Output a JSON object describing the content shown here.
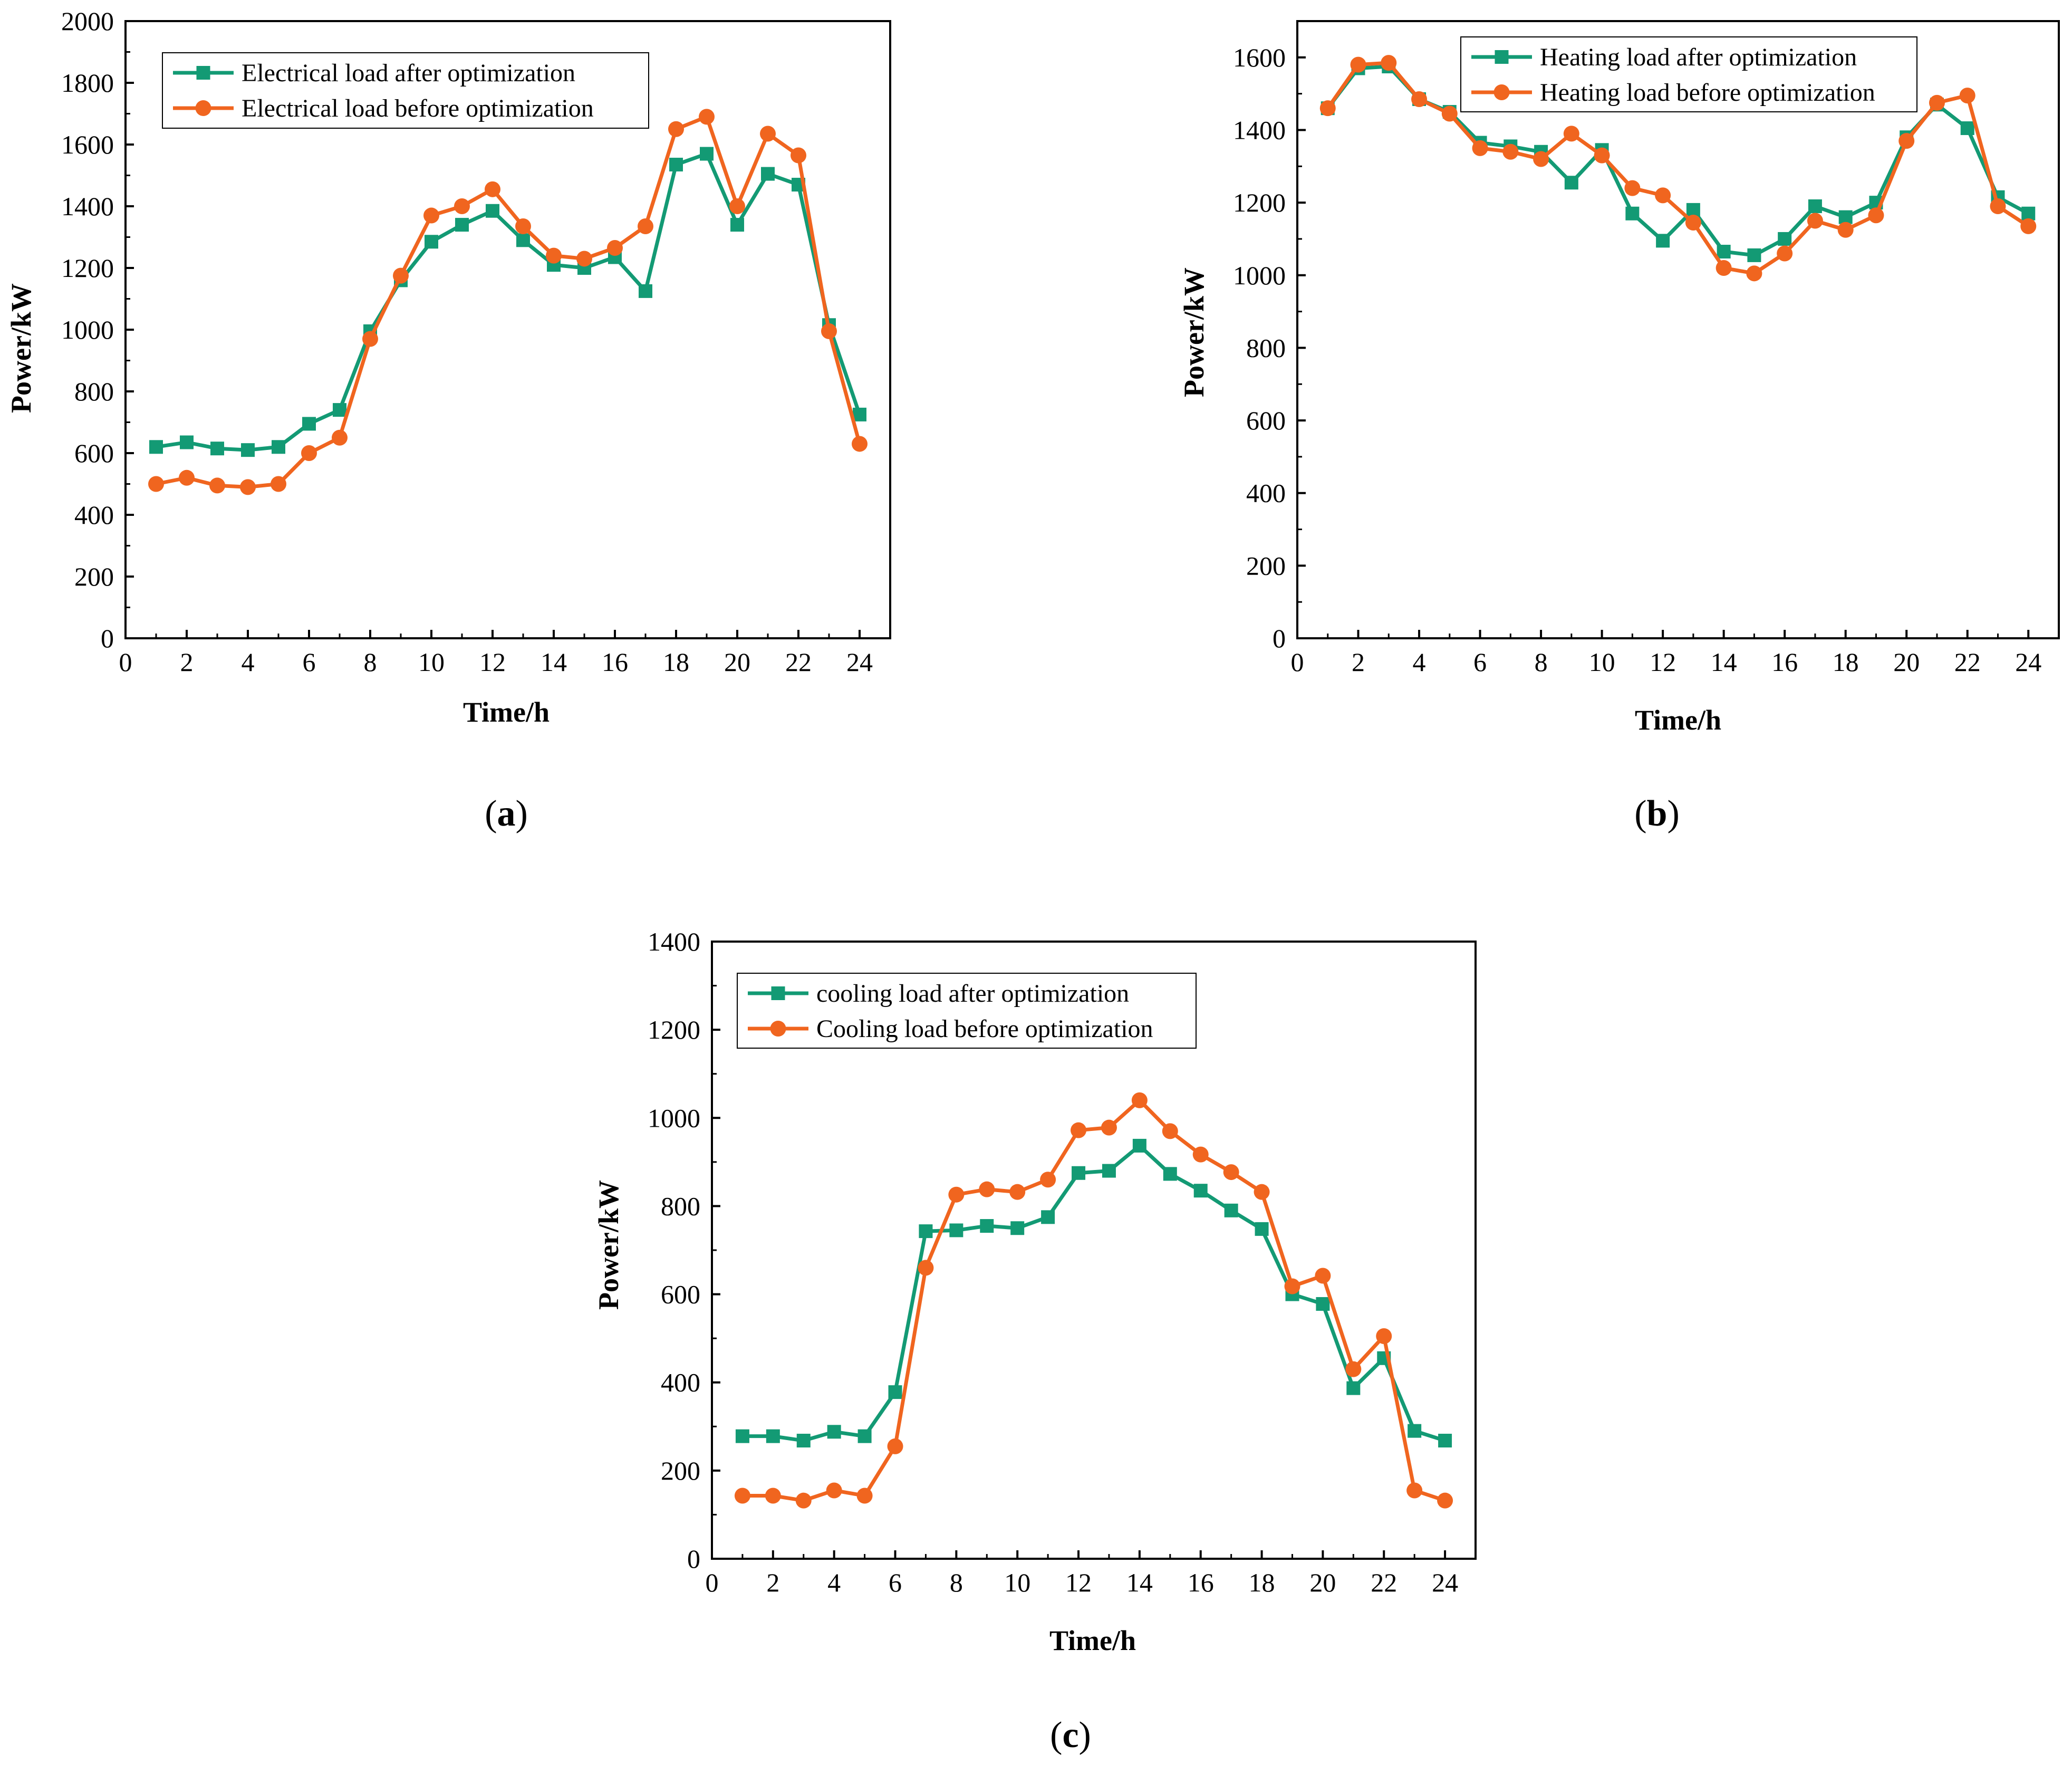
{
  "colors": {
    "after": "#139a74",
    "before": "#f0651f",
    "axis": "#000000"
  },
  "chart_data": [
    {
      "id": "a",
      "type": "line",
      "caption_letter": "a",
      "xlabel": "Time/h",
      "ylabel": "Power/kW",
      "xlim": [
        0,
        25
      ],
      "ylim": [
        0,
        2000
      ],
      "xticks": [
        0,
        2,
        4,
        6,
        8,
        10,
        12,
        14,
        16,
        18,
        20,
        22,
        24
      ],
      "yticks": [
        0,
        200,
        400,
        600,
        800,
        1000,
        1200,
        1400,
        1600,
        1800,
        2000
      ],
      "x": [
        1,
        2,
        3,
        4,
        5,
        6,
        7,
        8,
        9,
        10,
        11,
        12,
        13,
        14,
        15,
        16,
        17,
        18,
        19,
        20,
        21,
        22,
        23,
        24
      ],
      "legend_position": "top-left",
      "series": [
        {
          "name": "Electrical load after optimization",
          "marker": "square",
          "color": "#139a74",
          "values": [
            620,
            635,
            615,
            610,
            620,
            695,
            740,
            995,
            1160,
            1285,
            1340,
            1385,
            1290,
            1210,
            1200,
            1235,
            1125,
            1535,
            1570,
            1340,
            1505,
            1470,
            1015,
            725
          ]
        },
        {
          "name": "Electrical load before optimization",
          "marker": "circle",
          "color": "#f0651f",
          "values": [
            500,
            520,
            495,
            490,
            500,
            600,
            650,
            970,
            1175,
            1370,
            1400,
            1455,
            1335,
            1240,
            1230,
            1265,
            1335,
            1650,
            1690,
            1400,
            1635,
            1565,
            995,
            630
          ]
        }
      ]
    },
    {
      "id": "b",
      "type": "line",
      "caption_letter": "b",
      "xlabel": "Time/h",
      "ylabel": "Power/kW",
      "xlim": [
        0,
        25
      ],
      "ylim": [
        0,
        1700
      ],
      "xticks": [
        0,
        2,
        4,
        6,
        8,
        10,
        12,
        14,
        16,
        18,
        20,
        22,
        24
      ],
      "yticks": [
        0,
        200,
        400,
        600,
        800,
        1000,
        1200,
        1400,
        1600
      ],
      "x": [
        1,
        2,
        3,
        4,
        5,
        6,
        7,
        8,
        9,
        10,
        11,
        12,
        13,
        14,
        15,
        16,
        17,
        18,
        19,
        20,
        21,
        22,
        23,
        24
      ],
      "legend_position": "top-right",
      "series": [
        {
          "name": "Heating load after optimization",
          "marker": "square",
          "color": "#139a74",
          "values": [
            1460,
            1570,
            1575,
            1485,
            1450,
            1365,
            1355,
            1340,
            1255,
            1345,
            1170,
            1095,
            1180,
            1065,
            1055,
            1100,
            1190,
            1160,
            1200,
            1380,
            1470,
            1405,
            1215,
            1170
          ]
        },
        {
          "name": "Heating load before optimization",
          "marker": "circle",
          "color": "#f0651f",
          "values": [
            1460,
            1580,
            1585,
            1485,
            1445,
            1350,
            1340,
            1320,
            1390,
            1330,
            1240,
            1220,
            1145,
            1020,
            1005,
            1060,
            1150,
            1125,
            1165,
            1370,
            1475,
            1495,
            1190,
            1135
          ]
        }
      ]
    },
    {
      "id": "c",
      "type": "line",
      "caption_letter": "c",
      "xlabel": "Time/h",
      "ylabel": "Power/kW",
      "xlim": [
        0,
        25
      ],
      "ylim": [
        0,
        1400
      ],
      "xticks": [
        0,
        2,
        4,
        6,
        8,
        10,
        12,
        14,
        16,
        18,
        20,
        22,
        24
      ],
      "yticks": [
        0,
        200,
        400,
        600,
        800,
        1000,
        1200,
        1400
      ],
      "x": [
        1,
        2,
        3,
        4,
        5,
        6,
        7,
        8,
        9,
        10,
        11,
        12,
        13,
        14,
        15,
        16,
        17,
        18,
        19,
        20,
        21,
        22,
        23,
        24
      ],
      "legend_position": "top-left",
      "series": [
        {
          "name": "cooling load after optimization",
          "marker": "square",
          "color": "#139a74",
          "values": [
            278,
            278,
            268,
            288,
            278,
            378,
            743,
            745,
            755,
            750,
            775,
            875,
            880,
            937,
            873,
            835,
            790,
            748,
            600,
            578,
            387,
            455,
            290,
            268
          ]
        },
        {
          "name": "Cooling load before optimization",
          "marker": "circle",
          "color": "#f0651f",
          "values": [
            143,
            143,
            132,
            155,
            143,
            255,
            660,
            826,
            838,
            832,
            860,
            972,
            978,
            1040,
            970,
            917,
            877,
            832,
            618,
            642,
            430,
            505,
            155,
            132
          ]
        }
      ]
    }
  ]
}
